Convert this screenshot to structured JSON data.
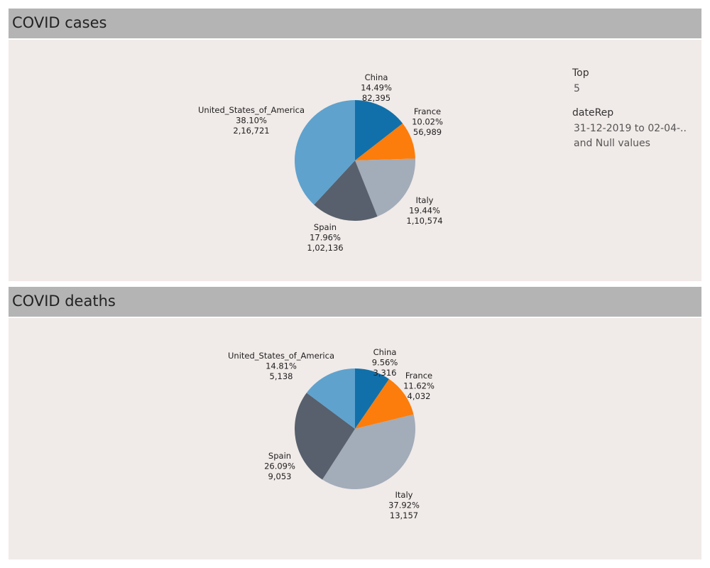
{
  "colors": {
    "China": "#1170aa",
    "France": "#fc7d0b",
    "Italy": "#a3acb9",
    "Spain": "#57606c",
    "United_States_of_America": "#5fa2ce"
  },
  "filters": {
    "top_title": "Top",
    "top_value": "5",
    "date_title": "dateRep",
    "date_value_line1": "31-12-2019 to 02-04-..",
    "date_value_line2": "and Null values"
  },
  "chart_data": [
    {
      "type": "pie",
      "title": "COVID cases",
      "slices": [
        {
          "name": "China",
          "percent_label": "14.49%",
          "value_label": "82,395",
          "value": 82395
        },
        {
          "name": "France",
          "percent_label": "10.02%",
          "value_label": "56,989",
          "value": 56989
        },
        {
          "name": "Italy",
          "percent_label": "19.44%",
          "value_label": "1,10,574",
          "value": 110574
        },
        {
          "name": "Spain",
          "percent_label": "17.96%",
          "value_label": "1,02,136",
          "value": 102136
        },
        {
          "name": "United_States_of_America",
          "percent_label": "38.10%",
          "value_label": "2,16,721",
          "value": 216721
        }
      ]
    },
    {
      "type": "pie",
      "title": "COVID deaths",
      "slices": [
        {
          "name": "China",
          "percent_label": "9.56%",
          "value_label": "3,316",
          "value": 3316
        },
        {
          "name": "France",
          "percent_label": "11.62%",
          "value_label": "4,032",
          "value": 4032
        },
        {
          "name": "Italy",
          "percent_label": "37.92%",
          "value_label": "13,157",
          "value": 13157
        },
        {
          "name": "Spain",
          "percent_label": "26.09%",
          "value_label": "9,053",
          "value": 9053
        },
        {
          "name": "United_States_of_America",
          "percent_label": "14.81%",
          "value_label": "5,138",
          "value": 5138
        }
      ]
    }
  ]
}
